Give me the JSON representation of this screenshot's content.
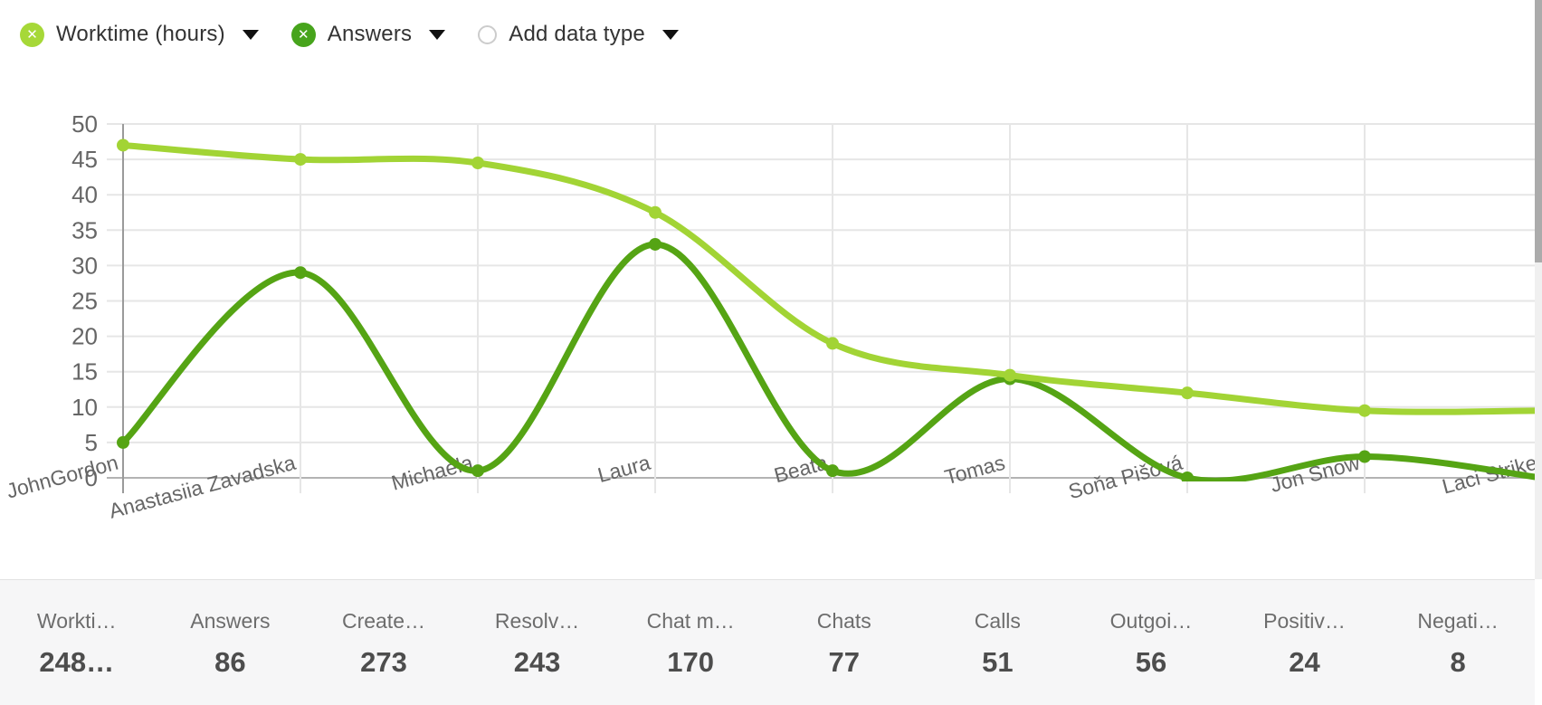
{
  "legend": {
    "items": [
      {
        "label": "Worktime (hours)",
        "icon": "circle-x",
        "color": "#a6d838"
      },
      {
        "label": "Answers",
        "icon": "circle-x",
        "color": "#47a41c"
      },
      {
        "label": "Add data type",
        "icon": "circle-empty",
        "color": "#ffffff"
      }
    ]
  },
  "chart_data": {
    "type": "line",
    "title": "",
    "xlabel": "",
    "ylabel": "",
    "categories": [
      "JohnGordon",
      "Anastasiia Zavadska",
      "Michaela",
      "Laura",
      "Beata",
      "Tomas",
      "Soňa Pišová",
      "Jon Snow",
      "Laci Strike"
    ],
    "series": [
      {
        "name": "Answers",
        "color": "#55a414",
        "values": [
          5,
          29,
          1,
          33,
          1,
          14,
          0,
          3,
          0
        ]
      },
      {
        "name": "Worktime (hours)",
        "color": "#a2d435",
        "values": [
          47,
          45,
          44.5,
          37.5,
          19,
          14.5,
          12,
          9.5,
          9.5
        ]
      }
    ],
    "ylim": [
      0,
      50
    ],
    "ytick_step": 5,
    "grid": true,
    "smooth": true,
    "legend_position": "top"
  },
  "axis_colors": {
    "grid": "#e6e6e6",
    "zero_line": "#b3b3b3",
    "y_axis_line": "#9a9a9a",
    "tick_label": "#666666"
  },
  "stats": {
    "columns": [
      {
        "label": "Workti…",
        "value": "248…"
      },
      {
        "label": "Answers",
        "value": "86"
      },
      {
        "label": "Create…",
        "value": "273"
      },
      {
        "label": "Resolv…",
        "value": "243"
      },
      {
        "label": "Chat m…",
        "value": "170"
      },
      {
        "label": "Chats",
        "value": "77"
      },
      {
        "label": "Calls",
        "value": "51"
      },
      {
        "label": "Outgoi…",
        "value": "56"
      },
      {
        "label": "Positiv…",
        "value": "24"
      },
      {
        "label": "Negati…",
        "value": "8"
      }
    ]
  }
}
